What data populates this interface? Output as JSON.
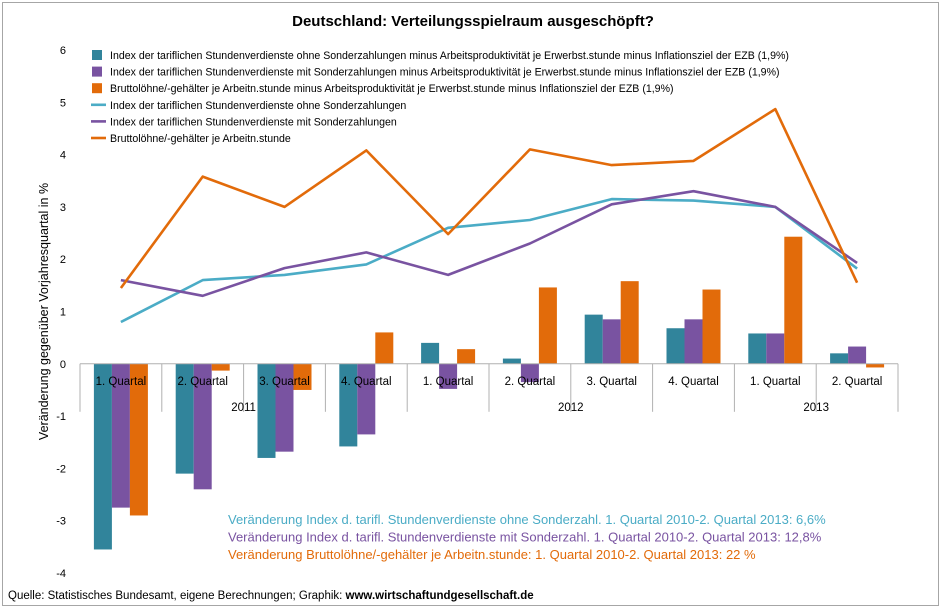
{
  "chart_data": {
    "type": "bar",
    "title": "Deutschland: Verteilungsspielraum ausgeschöpft?",
    "ylabel": "Veränderung gegenüber Vorjahresquartal in %",
    "ylim": [
      -4,
      6
    ],
    "yticks": [
      "6",
      "5",
      "4",
      "3",
      "2",
      "1",
      "0",
      "-1",
      "-2",
      "-3",
      "-4"
    ],
    "categories": [
      "1. Quartal",
      "2. Quartal",
      "3. Quartal",
      "4. Quartal",
      "1. Quartal",
      "2. Quartal",
      "3. Quartal",
      "4. Quartal",
      "1. Quartal",
      "2. Quartal"
    ],
    "groups": [
      {
        "label": "2011",
        "count": 4
      },
      {
        "label": "2012",
        "count": 4
      },
      {
        "label": "2013",
        "count": 2
      }
    ],
    "bar_series": [
      {
        "name": "Index der tariflichen Stundenverdienste ohne Sonderzahlungen minus Arbeitsproduktivität je Erwerbst.stunde minus Inflationsziel der EZB (1,9%)",
        "color": "#31849b",
        "values": [
          -3.55,
          -2.1,
          -1.8,
          -1.58,
          0.4,
          0.1,
          0.94,
          0.68,
          0.58,
          0.2
        ]
      },
      {
        "name": "Index der tariflichen Stundenverdienste mit Sonderzahlungen minus Arbeitsproduktivität je Erwerbst.stunde  minus Inflationsziel der EZB (1,9%)",
        "color": "#7953a1",
        "values": [
          -2.75,
          -2.4,
          -1.68,
          -1.35,
          -0.48,
          -0.35,
          0.85,
          0.85,
          0.58,
          0.33
        ]
      },
      {
        "name": "Bruttolöhne/-gehälter je Arbeitn.stunde minus Arbeitsproduktivität je Erwerbst.stunde minus Inflationsziel der EZB (1,9%)",
        "color": "#e26b0a",
        "values": [
          -2.9,
          -0.13,
          -0.5,
          0.6,
          0.28,
          1.46,
          1.58,
          1.42,
          2.43,
          -0.07
        ]
      }
    ],
    "line_series": [
      {
        "name": "Index der tariflichen Stundenverdienste ohne Sonderzahlungen",
        "color": "#4bacc6",
        "values": [
          0.8,
          1.6,
          1.7,
          1.9,
          2.6,
          2.75,
          3.15,
          3.12,
          3.0,
          1.82
        ]
      },
      {
        "name": "Index der tariflichen Stundenverdienste mit Sonderzahlungen",
        "color": "#7953a1",
        "values": [
          1.6,
          1.3,
          1.83,
          2.13,
          1.7,
          2.3,
          3.05,
          3.3,
          3.0,
          1.93
        ]
      },
      {
        "name": "Bruttolöhne/-gehälter je Arbeitn.stunde",
        "color": "#e26b0a",
        "values": [
          1.45,
          3.58,
          3.0,
          4.08,
          2.48,
          4.1,
          3.8,
          3.88,
          4.87,
          1.55
        ]
      }
    ],
    "annotations": [
      {
        "text": "Veränderung Index d. tarifl. Stundenverdienste  ohne Sonderzahl. 1. Quartal 2010-2. Quartal 2013: 6,6%",
        "color": "#4bacc6"
      },
      {
        "text": "Veränderung Index d. tarifl. Stundenverdienste  mit Sonderzahl. 1. Quartal 2010-2. Quartal 2013: 12,8%",
        "color": "#7953a1"
      },
      {
        "text": "Veränderung Bruttolöhne/-gehälter je Arbeitn.stunde:  1. Quartal 2010-2. Quartal 2013: 22 %",
        "color": "#e26b0a"
      }
    ],
    "legend_position": "top-left",
    "grid": false
  },
  "footer": {
    "source_prefix": "Quelle: Statistisches Bundesamt, eigene Berechnungen; Graphik: ",
    "source_site": "www.wirtschaftundgesellschaft.de"
  }
}
